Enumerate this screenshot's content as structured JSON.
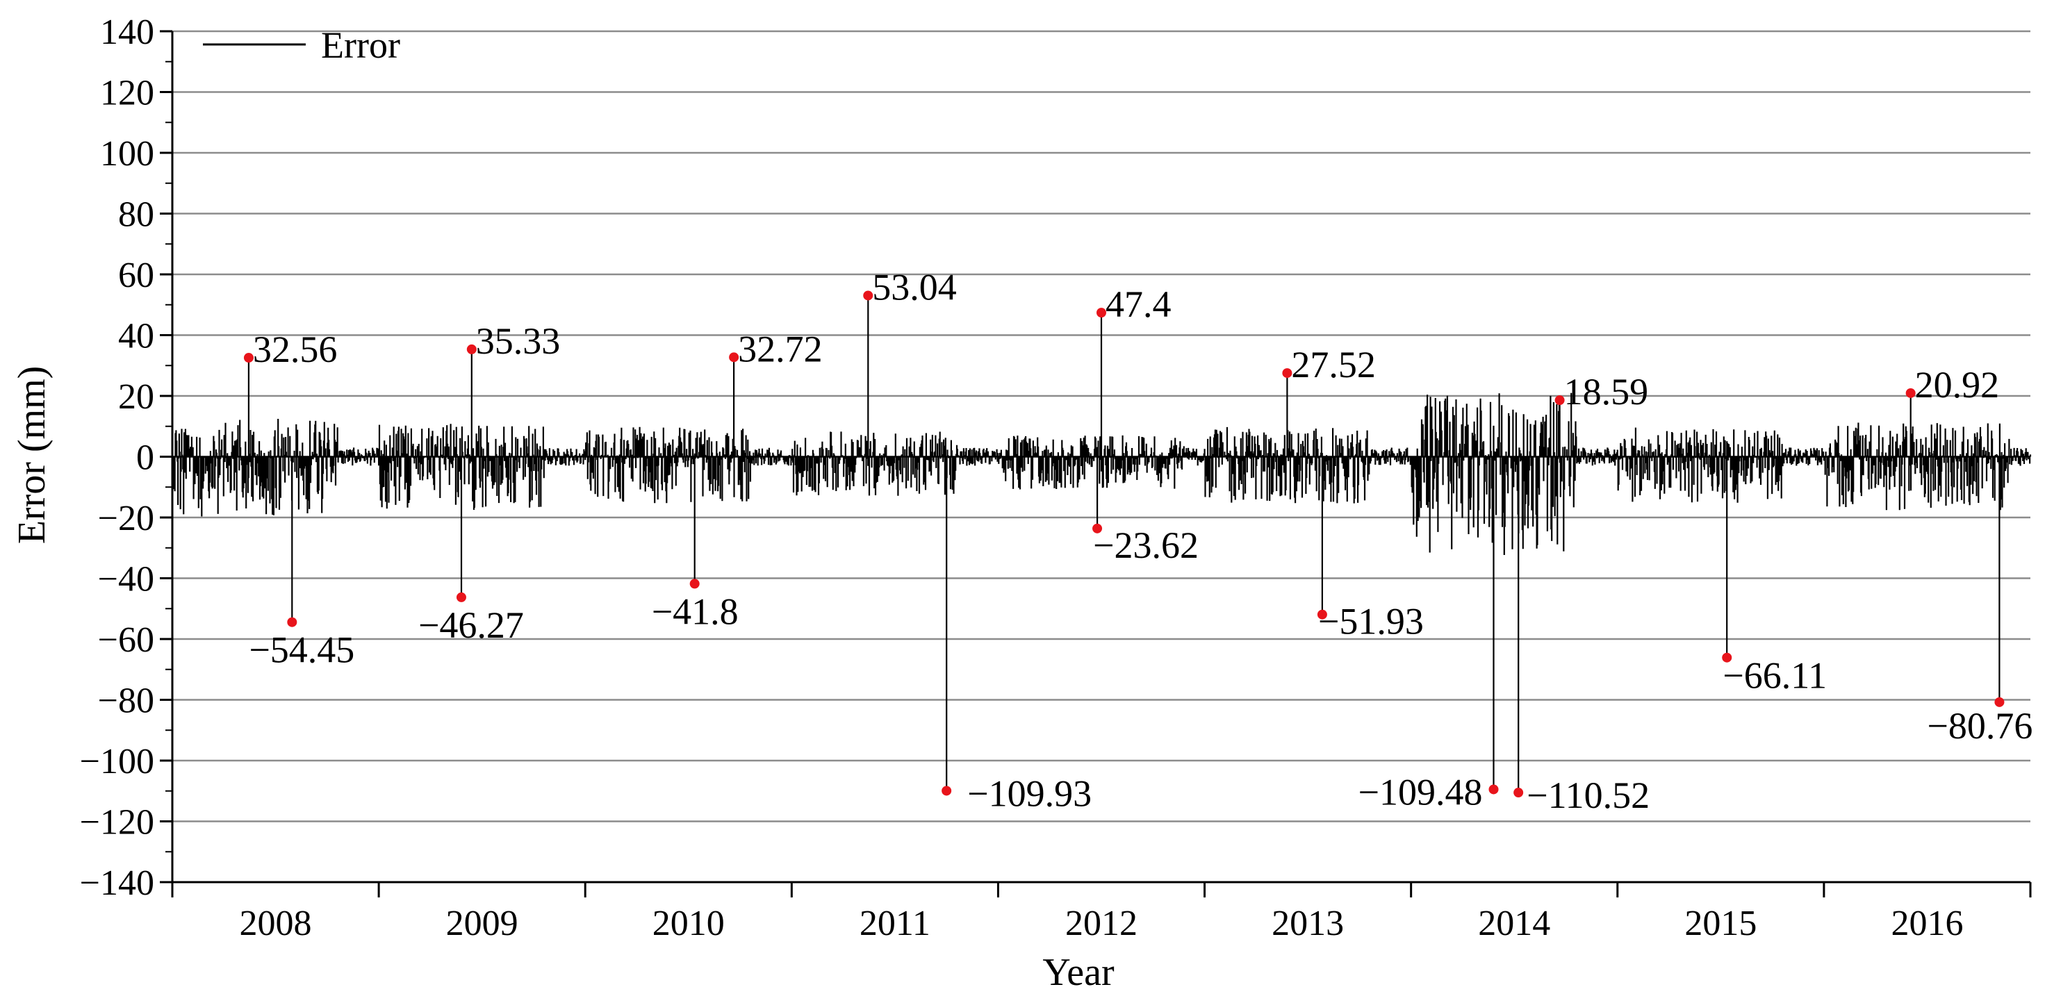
{
  "chart_data": {
    "type": "line",
    "title": "",
    "xlabel": "Year",
    "ylabel": "Error (mm)",
    "ylim": [
      -140,
      140
    ],
    "xlim": [
      2007.55,
      2016.55
    ],
    "yticks": [
      -140,
      -120,
      -100,
      -80,
      -60,
      -40,
      -20,
      0,
      20,
      40,
      60,
      80,
      100,
      120,
      140
    ],
    "x_tick_labels": [
      "2008",
      "2009",
      "2010",
      "2011",
      "2012",
      "2013",
      "2014",
      "2015",
      "2016"
    ],
    "grid": "horizontal",
    "legend": {
      "position": "top-left",
      "entries": [
        "Error"
      ]
    },
    "series": [
      {
        "name": "Error",
        "color": "#000000",
        "extremes": [
          {
            "x": 2007.92,
            "y": 32.56,
            "label": "32.56"
          },
          {
            "x": 2008.13,
            "y": -54.45,
            "label": "−54.45"
          },
          {
            "x": 2009.0,
            "y": 35.33,
            "label": "35.33"
          },
          {
            "x": 2008.95,
            "y": -46.27,
            "label": "−46.27"
          },
          {
            "x": 2010.27,
            "y": 32.72,
            "label": "32.72"
          },
          {
            "x": 2010.08,
            "y": -41.8,
            "label": "−41.8"
          },
          {
            "x": 2010.92,
            "y": 53.04,
            "label": "53.04"
          },
          {
            "x": 2011.3,
            "y": -109.93,
            "label": "−109.93"
          },
          {
            "x": 2012.05,
            "y": 47.4,
            "label": "47.4"
          },
          {
            "x": 2012.03,
            "y": -23.62,
            "label": "−23.62"
          },
          {
            "x": 2012.95,
            "y": 27.52,
            "label": "27.52"
          },
          {
            "x": 2013.12,
            "y": -51.93,
            "label": "−51.93"
          },
          {
            "x": 2013.95,
            "y": -109.48,
            "label": "−109.48"
          },
          {
            "x": 2014.07,
            "y": -110.52,
            "label": "−110.52"
          },
          {
            "x": 2014.27,
            "y": 18.59,
            "label": "18.59"
          },
          {
            "x": 2015.08,
            "y": -66.11,
            "label": "−66.11"
          },
          {
            "x": 2015.97,
            "y": 20.92,
            "label": "20.92"
          },
          {
            "x": 2016.4,
            "y": -80.76,
            "label": "−80.76"
          }
        ],
        "active_periods": [
          {
            "start": 2007.55,
            "end": 2008.35,
            "amp": 18
          },
          {
            "start": 2008.55,
            "end": 2009.35,
            "amp": 16
          },
          {
            "start": 2009.55,
            "end": 2010.35,
            "amp": 14
          },
          {
            "start": 2010.55,
            "end": 2011.35,
            "amp": 12
          },
          {
            "start": 2011.55,
            "end": 2012.45,
            "amp": 10
          },
          {
            "start": 2012.55,
            "end": 2013.35,
            "amp": 14
          },
          {
            "start": 2013.55,
            "end": 2014.35,
            "amp": 30
          },
          {
            "start": 2014.55,
            "end": 2015.35,
            "amp": 14
          },
          {
            "start": 2015.55,
            "end": 2016.45,
            "amp": 16
          }
        ]
      }
    ]
  }
}
